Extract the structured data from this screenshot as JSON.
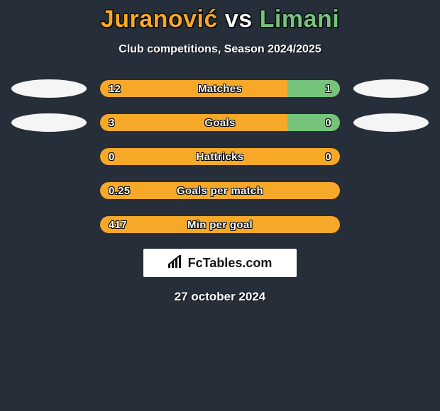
{
  "header": {
    "player1": "Juranović",
    "vs": "vs",
    "player2": "Limani",
    "player1_color": "#f6a828",
    "vs_color": "#ffffff",
    "player2_color": "#76c47b"
  },
  "subtitle": "Club competitions, Season 2024/2025",
  "colors": {
    "left_fill": "#f6a828",
    "right_fill": "#76c47b",
    "background": "#252e39",
    "bar_border": "#2a2a2a",
    "ellipse_left": "#f5f5f5",
    "ellipse_right": "#f5f5f5"
  },
  "stats": [
    {
      "label": "Matches",
      "left_val": "12",
      "right_val": "1",
      "left_pct": 78,
      "right_pct": 22,
      "show_ellipses": true
    },
    {
      "label": "Goals",
      "left_val": "3",
      "right_val": "0",
      "left_pct": 78,
      "right_pct": 22,
      "show_ellipses": true
    },
    {
      "label": "Hattricks",
      "left_val": "0",
      "right_val": "0",
      "left_pct": 100,
      "right_pct": 0,
      "show_ellipses": false
    },
    {
      "label": "Goals per match",
      "left_val": "0.25",
      "right_val": "",
      "left_pct": 100,
      "right_pct": 0,
      "show_ellipses": false
    },
    {
      "label": "Min per goal",
      "left_val": "417",
      "right_val": "",
      "left_pct": 100,
      "right_pct": 0,
      "show_ellipses": false
    }
  ],
  "logo": {
    "icon": "signal-icon",
    "text": "FcTables.com"
  },
  "date": "27 october 2024"
}
